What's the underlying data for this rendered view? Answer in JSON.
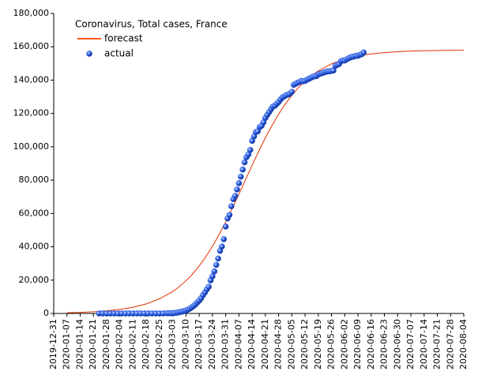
{
  "chart_data": {
    "type": "line",
    "title": "Coronavirus, Total cases, France",
    "xlim": [
      "2019-12-31",
      "2020-08-04"
    ],
    "xticks": [
      "2019-12-31",
      "2020-01-07",
      "2020-01-14",
      "2020-01-21",
      "2020-01-28",
      "2020-02-04",
      "2020-02-11",
      "2020-02-18",
      "2020-02-25",
      "2020-03-03",
      "2020-03-10",
      "2020-03-17",
      "2020-03-24",
      "2020-03-31",
      "2020-04-07",
      "2020-04-14",
      "2020-04-21",
      "2020-04-28",
      "2020-05-05",
      "2020-05-12",
      "2020-05-19",
      "2020-05-26",
      "2020-06-02",
      "2020-06-09",
      "2020-06-16",
      "2020-06-23",
      "2020-06-30",
      "2020-07-07",
      "2020-07-14",
      "2020-07-21",
      "2020-07-28",
      "2020-08-04"
    ],
    "ylim": [
      0,
      180000
    ],
    "yticks": [
      0,
      {
        "value": 20000,
        "label": "20,000"
      },
      {
        "value": 40000,
        "label": "40,000"
      },
      {
        "value": 60000,
        "label": "60,000"
      },
      {
        "value": 80000,
        "label": "80,000"
      },
      {
        "value": 100000,
        "label": "100,000"
      },
      {
        "value": 120000,
        "label": "120,000"
      },
      {
        "value": 140000,
        "label": "140,000"
      },
      {
        "value": 160000,
        "label": "160,000"
      },
      {
        "value": 180000,
        "label": "180,000"
      }
    ],
    "grid": false,
    "legend": "top-left",
    "series": [
      {
        "name": "forecast",
        "type": "line",
        "color": "#e03000",
        "x": [
          "2020-01-07",
          "2020-01-14",
          "2020-01-21",
          "2020-01-28",
          "2020-02-04",
          "2020-02-11",
          "2020-02-18",
          "2020-02-25",
          "2020-03-03",
          "2020-03-06",
          "2020-03-10",
          "2020-03-13",
          "2020-03-17",
          "2020-03-20",
          "2020-03-24",
          "2020-03-27",
          "2020-03-31",
          "2020-04-03",
          "2020-04-07",
          "2020-04-10",
          "2020-04-14",
          "2020-04-17",
          "2020-04-21",
          "2020-04-24",
          "2020-04-28",
          "2020-05-01",
          "2020-05-05",
          "2020-05-08",
          "2020-05-12",
          "2020-05-15",
          "2020-05-19",
          "2020-05-26",
          "2020-06-02",
          "2020-06-09",
          "2020-06-16",
          "2020-06-23",
          "2020-06-30",
          "2020-07-07",
          "2020-07-14",
          "2020-07-21",
          "2020-07-28",
          "2020-08-04"
        ],
        "values": [
          422,
          656,
          1016,
          1574,
          2435,
          3753,
          5745,
          8763,
          13211,
          15690,
          19627,
          23100,
          28540,
          33230,
          40330,
          46250,
          54900,
          61860,
          71560,
          79000,
          88910,
          96160,
          105330,
          111740,
          119520,
          124800,
          130900,
          134920,
          139450,
          142340,
          145530,
          149750,
          152580,
          154480,
          155710,
          156520,
          157050,
          157380,
          157600,
          157740,
          157840,
          157900
        ]
      },
      {
        "name": "actual",
        "type": "scatter",
        "color": "#1a4fd6",
        "x": [
          "2020-01-24",
          "2020-01-26",
          "2020-01-28",
          "2020-01-30",
          "2020-02-01",
          "2020-02-03",
          "2020-02-05",
          "2020-02-07",
          "2020-02-09",
          "2020-02-11",
          "2020-02-13",
          "2020-02-15",
          "2020-02-17",
          "2020-02-19",
          "2020-02-21",
          "2020-02-23",
          "2020-02-25",
          "2020-02-27",
          "2020-02-29",
          "2020-03-01",
          "2020-03-02",
          "2020-03-03",
          "2020-03-04",
          "2020-03-05",
          "2020-03-06",
          "2020-03-07",
          "2020-03-08",
          "2020-03-09",
          "2020-03-10",
          "2020-03-11",
          "2020-03-12",
          "2020-03-13",
          "2020-03-14",
          "2020-03-15",
          "2020-03-16",
          "2020-03-17",
          "2020-03-18",
          "2020-03-19",
          "2020-03-20",
          "2020-03-21",
          "2020-03-22",
          "2020-03-23",
          "2020-03-24",
          "2020-03-25",
          "2020-03-26",
          "2020-03-27",
          "2020-03-28",
          "2020-03-29",
          "2020-03-30",
          "2020-03-31",
          "2020-04-01",
          "2020-04-02",
          "2020-04-03",
          "2020-04-04",
          "2020-04-05",
          "2020-04-06",
          "2020-04-07",
          "2020-04-08",
          "2020-04-09",
          "2020-04-10",
          "2020-04-11",
          "2020-04-12",
          "2020-04-13",
          "2020-04-14",
          "2020-04-15",
          "2020-04-16",
          "2020-04-17",
          "2020-04-18",
          "2020-04-19",
          "2020-04-20",
          "2020-04-21",
          "2020-04-22",
          "2020-04-23",
          "2020-04-24",
          "2020-04-25",
          "2020-04-26",
          "2020-04-27",
          "2020-04-28",
          "2020-04-29",
          "2020-04-30",
          "2020-05-01",
          "2020-05-02",
          "2020-05-03",
          "2020-05-04",
          "2020-05-05",
          "2020-05-06",
          "2020-05-07",
          "2020-05-08",
          "2020-05-09",
          "2020-05-10",
          "2020-05-11",
          "2020-05-12",
          "2020-05-13",
          "2020-05-14",
          "2020-05-15",
          "2020-05-16",
          "2020-05-17",
          "2020-05-18",
          "2020-05-19",
          "2020-05-20",
          "2020-05-21",
          "2020-05-22",
          "2020-05-23",
          "2020-05-24",
          "2020-05-25",
          "2020-05-26",
          "2020-05-27",
          "2020-05-28",
          "2020-05-29",
          "2020-05-30",
          "2020-05-31",
          "2020-06-01",
          "2020-06-02",
          "2020-06-03",
          "2020-06-04",
          "2020-06-05",
          "2020-06-06",
          "2020-06-07",
          "2020-06-08",
          "2020-06-09",
          "2020-06-10",
          "2020-06-11",
          "2020-06-12"
        ],
        "values": [
          2,
          3,
          4,
          5,
          6,
          6,
          6,
          6,
          11,
          11,
          11,
          12,
          12,
          12,
          12,
          12,
          14,
          38,
          100,
          130,
          191,
          212,
          285,
          423,
          613,
          949,
          1126,
          1412,
          1784,
          2281,
          2876,
          3661,
          4499,
          5423,
          6633,
          7730,
          9134,
          10995,
          12612,
          14459,
          16018,
          19856,
          22304,
          25233,
          29155,
          32964,
          37575,
          40174,
          44550,
          52128,
          56989,
          59105,
          64338,
          68605,
          70478,
          74390,
          78167,
          82048,
          86334,
          90676,
          93790,
          95403,
          98076,
          103573,
          106206,
          108847,
          109252,
          111821,
          112606,
          114657,
          117324,
          119151,
          120804,
          122577,
          124114,
          124575,
          125770,
          126835,
          128339,
          129581,
          130185,
          130979,
          131287,
          131863,
          132967,
          137150,
          137779,
          138421,
          138854,
          139519,
          139300,
          139519,
          140227,
          140734,
          141356,
          141919,
          142291,
          142411,
          143427,
          143845,
          144163,
          144556,
          144921,
          145279,
          145279,
          145555,
          145746,
          148524,
          149071,
          149668,
          151325,
          151753,
          151753,
          152444,
          153055,
          153634,
          153977,
          154188,
          154591,
          154591,
          155136,
          155561,
          156600
        ]
      }
    ]
  }
}
